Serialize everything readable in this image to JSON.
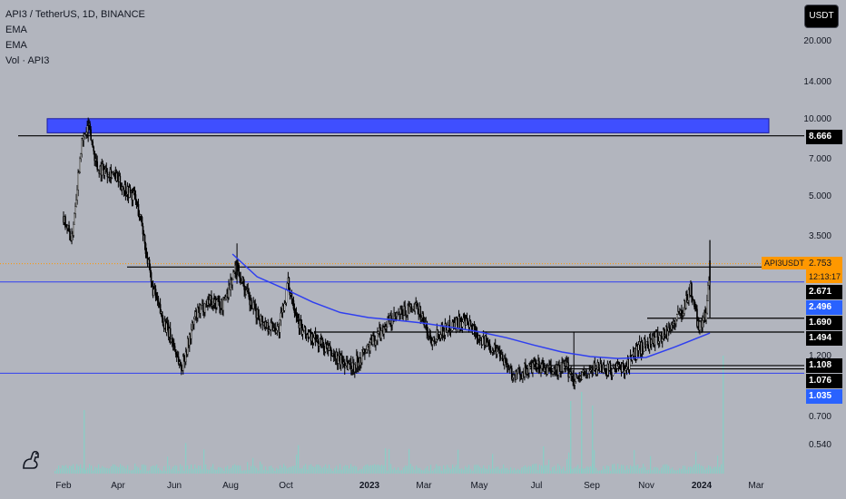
{
  "legend": {
    "symbol": "API3 / TetherUS, 1D, BINANCE",
    "ema1": "EMA",
    "ema2": "EMA",
    "volume": "Vol · API3"
  },
  "currency_button": "USDT",
  "symbol_tag": "API3USDT",
  "price_tags": {
    "last_price": "2.753",
    "countdown": "12:13:17",
    "resistance_top": "8.666",
    "level_2671": "2.671",
    "ema_value": "2.496",
    "level_1690": "1.690",
    "level_1494": "1.494",
    "level_1108": "1.108",
    "level_1076": "1.076",
    "level_1035": "1.035"
  },
  "colors": {
    "background": "#b2b5be",
    "candle": "#000000",
    "ema": "#2f3ff0",
    "zone": "#3f4fff",
    "last_price": "#ff9800",
    "volume_bar": "#7dd6c8"
  },
  "chart_data": {
    "type": "candlestick",
    "symbol": "API3 / TetherUS",
    "interval": "1D",
    "exchange": "BINANCE",
    "y_scale": "log",
    "y_ticks": [
      20.0,
      14.0,
      10.0,
      7.0,
      5.0,
      3.5,
      1.2,
      0.7,
      0.54
    ],
    "y_tick_labels": [
      "20.000",
      "14.000",
      "10.000",
      "7.000",
      "5.000",
      "3.500",
      "1.200",
      "0.700",
      "0.540"
    ],
    "x_tick_labels": [
      "Feb",
      "Apr",
      "Jun",
      "Aug",
      "Oct",
      "2023",
      "Mar",
      "May",
      "Jul",
      "Sep",
      "Nov",
      "2024",
      "Mar"
    ],
    "price_path": [
      [
        "2022-02-01",
        4.2
      ],
      [
        "2022-02-10",
        3.4
      ],
      [
        "2022-02-20",
        7.8
      ],
      [
        "2022-02-28",
        9.5
      ],
      [
        "2022-03-10",
        6.5
      ],
      [
        "2022-03-25",
        6.3
      ],
      [
        "2022-04-05",
        5.6
      ],
      [
        "2022-04-20",
        5.0
      ],
      [
        "2022-04-28",
        3.9
      ],
      [
        "2022-05-08",
        2.3
      ],
      [
        "2022-05-20",
        1.7
      ],
      [
        "2022-06-01",
        1.35
      ],
      [
        "2022-06-10",
        1.08
      ],
      [
        "2022-06-25",
        1.7
      ],
      [
        "2022-07-10",
        2.0
      ],
      [
        "2022-07-25",
        1.9
      ],
      [
        "2022-08-10",
        2.7
      ],
      [
        "2022-08-25",
        1.9
      ],
      [
        "2022-09-10",
        1.6
      ],
      [
        "2022-09-25",
        1.55
      ],
      [
        "2022-10-05",
        2.3
      ],
      [
        "2022-10-20",
        1.5
      ],
      [
        "2022-11-10",
        1.35
      ],
      [
        "2022-11-25",
        1.2
      ],
      [
        "2022-12-15",
        1.1
      ],
      [
        "2023-01-01",
        1.3
      ],
      [
        "2023-01-20",
        1.6
      ],
      [
        "2023-02-10",
        1.8
      ],
      [
        "2023-02-25",
        1.85
      ],
      [
        "2023-03-10",
        1.4
      ],
      [
        "2023-03-20",
        1.5
      ],
      [
        "2023-04-10",
        1.65
      ],
      [
        "2023-04-25",
        1.55
      ],
      [
        "2023-05-10",
        1.35
      ],
      [
        "2023-05-25",
        1.25
      ],
      [
        "2023-06-10",
        1.0
      ],
      [
        "2023-06-20",
        1.06
      ],
      [
        "2023-07-05",
        1.1
      ],
      [
        "2023-07-20",
        1.05
      ],
      [
        "2023-08-05",
        1.1
      ],
      [
        "2023-08-15",
        0.98
      ],
      [
        "2023-08-25",
        1.02
      ],
      [
        "2023-09-10",
        1.1
      ],
      [
        "2023-09-25",
        1.06
      ],
      [
        "2023-10-10",
        1.1
      ],
      [
        "2023-10-25",
        1.3
      ],
      [
        "2023-11-10",
        1.4
      ],
      [
        "2023-11-25",
        1.5
      ],
      [
        "2023-12-10",
        1.8
      ],
      [
        "2023-12-20",
        2.2
      ],
      [
        "2023-12-28",
        1.6
      ],
      [
        "2024-01-05",
        1.7
      ],
      [
        "2024-01-10",
        2.75
      ]
    ],
    "ema_path": [
      [
        "2022-08-05",
        3.0
      ],
      [
        "2022-09-01",
        2.45
      ],
      [
        "2022-10-01",
        2.2
      ],
      [
        "2022-11-01",
        1.95
      ],
      [
        "2022-12-01",
        1.78
      ],
      [
        "2023-01-01",
        1.7
      ],
      [
        "2023-02-01",
        1.66
      ],
      [
        "2023-03-01",
        1.62
      ],
      [
        "2023-04-01",
        1.56
      ],
      [
        "2023-05-01",
        1.5
      ],
      [
        "2023-06-01",
        1.42
      ],
      [
        "2023-07-01",
        1.33
      ],
      [
        "2023-08-01",
        1.25
      ],
      [
        "2023-09-01",
        1.2
      ],
      [
        "2023-10-01",
        1.18
      ],
      [
        "2023-11-01",
        1.19
      ],
      [
        "2023-12-01",
        1.3
      ],
      [
        "2024-01-10",
        1.48
      ]
    ],
    "horizontal_levels": [
      8.666,
      2.671,
      2.496,
      1.69,
      1.494,
      1.108,
      1.076,
      1.035
    ],
    "zone": {
      "low": 8.9,
      "high": 10.1
    }
  }
}
